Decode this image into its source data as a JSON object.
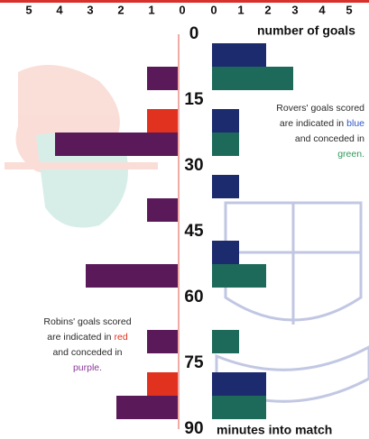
{
  "chart_data": {
    "type": "back-to-back-bar",
    "x_axis_label": "number of goals",
    "y_axis_label": "minutes into match",
    "categories": [
      null,
      null,
      null,
      null,
      null,
      null
    ],
    "ylim": [
      0,
      90
    ],
    "yticks": [
      0,
      15,
      30,
      45,
      60,
      75,
      90
    ],
    "xlim_left": [
      0,
      5
    ],
    "xticks_left": [
      5,
      4,
      3,
      2,
      1,
      0
    ],
    "xlim": [
      0,
      5
    ],
    "xticks": [
      0,
      1,
      2,
      3,
      4,
      5
    ],
    "series": [
      {
        "name": "Robins scored",
        "side": "left",
        "slot": 0,
        "color": "#e0321e",
        "values": [
          0,
          1,
          0,
          0,
          0,
          1
        ]
      },
      {
        "name": "Robins conceded",
        "side": "left",
        "slot": 1,
        "color": "#5a1a5a",
        "values": [
          1,
          4,
          1,
          3,
          1,
          2
        ]
      },
      {
        "name": "Rovers scored",
        "side": "right",
        "slot": 0,
        "color": "#1c2b6e",
        "values": [
          2,
          1,
          1,
          1,
          0,
          2
        ]
      },
      {
        "name": "Rovers conceded",
        "side": "right",
        "slot": 1,
        "color": "#1d6a5a",
        "values": [
          3,
          1,
          0,
          2,
          1,
          2
        ]
      }
    ],
    "annotations": [
      {
        "parts": [
          {
            "text": "Rovers' goals scored",
            "color": "#2a2a2a"
          },
          {
            "text": "are indicated in",
            "color": "#2a2a2a"
          },
          {
            "text": "blue",
            "color": "#2f56c8"
          },
          {
            "text": "and conceded in",
            "color": "#2a2a2a"
          },
          {
            "text": "green.",
            "color": "#2f9a5a"
          }
        ]
      },
      {
        "parts": [
          {
            "text": "Robins' goals scored",
            "color": "#2a2a2a"
          },
          {
            "text": "are indicated in",
            "color": "#2a2a2a"
          },
          {
            "text": "red",
            "color": "#e0321e"
          },
          {
            "text": "and conceded in",
            "color": "#2a2a2a"
          },
          {
            "text": "purple.",
            "color": "#8a3a9a"
          }
        ]
      }
    ]
  }
}
